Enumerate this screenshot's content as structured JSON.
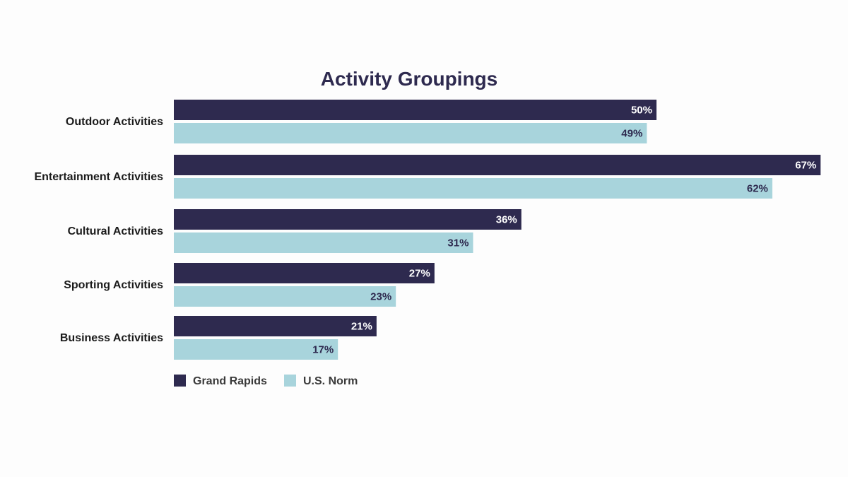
{
  "chart_data": {
    "type": "bar",
    "orientation": "horizontal",
    "title": "Activity Groupings",
    "categories": [
      "Outdoor Activities",
      "Entertainment Activities",
      "Cultural Activities",
      "Sporting Activities",
      "Business Activities"
    ],
    "series": [
      {
        "name": "Grand Rapids",
        "values": [
          50,
          67,
          36,
          27,
          21
        ],
        "labels": [
          "50%",
          "67%",
          "36%",
          "27%",
          "21%"
        ],
        "color": "#2e2a4f",
        "label_color": "#ffffff"
      },
      {
        "name": "U.S. Norm",
        "values": [
          49,
          62,
          31,
          23,
          17
        ],
        "labels": [
          "49%",
          "62%",
          "31%",
          "23%",
          "17%"
        ],
        "color": "#a8d4dc",
        "label_color": "#2e2a4f"
      }
    ],
    "xlim": [
      0,
      67
    ],
    "grid": false,
    "legend_position": "bottom-left"
  }
}
